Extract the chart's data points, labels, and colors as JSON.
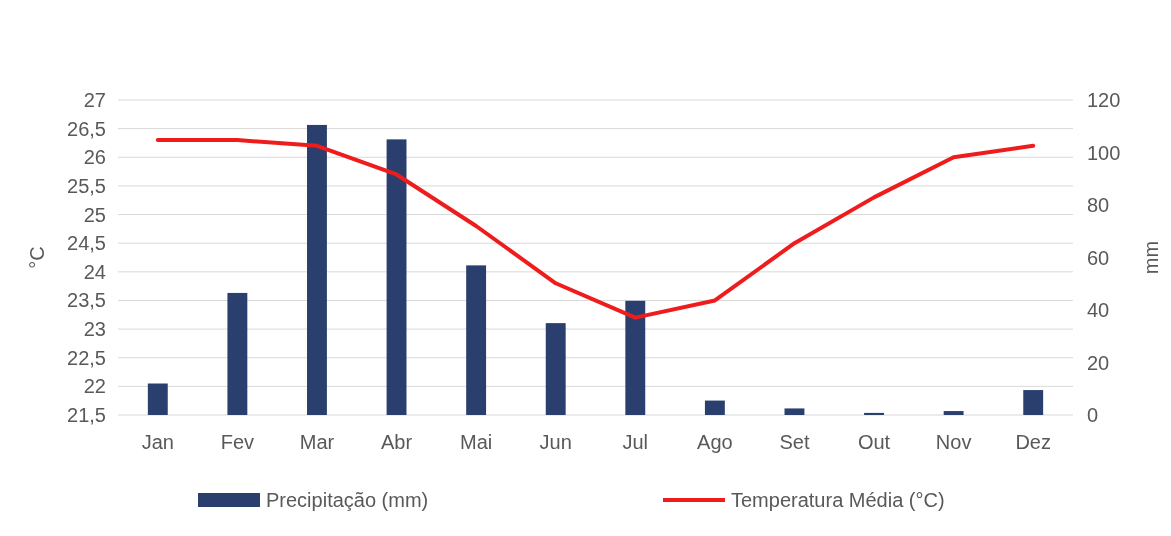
{
  "chart_data": {
    "type": "bar",
    "categories": [
      "Jan",
      "Fev",
      "Mar",
      "Abr",
      "Mai",
      "Jun",
      "Jul",
      "Ago",
      "Set",
      "Out",
      "Nov",
      "Dez"
    ],
    "series": [
      {
        "name": "Precipitação (mm)",
        "axis": "y2",
        "color": "#2a3f6d",
        "values": [
          12,
          46.5,
          110.5,
          105,
          57,
          35,
          43.5,
          5.5,
          2.5,
          0.8,
          1.5,
          9.5
        ]
      },
      {
        "name": "Temperatura Média (°C)",
        "type": "line",
        "color": "#ee1c1c",
        "values": [
          26.3,
          26.3,
          26.2,
          25.7,
          24.8,
          23.8,
          23.2,
          23.5,
          24.5,
          25.3,
          26,
          26.2
        ]
      }
    ],
    "ylabel": "°C",
    "y2label": "mm",
    "ylim": [
      21.5,
      27
    ],
    "yticks": [
      {
        "value": 21.5,
        "label": "21,5"
      },
      22,
      {
        "value": 22.5,
        "label": "22,5"
      },
      23,
      {
        "value": 23.5,
        "label": "23,5"
      },
      24,
      {
        "value": 24.5,
        "label": "24,5"
      },
      25,
      {
        "value": 25.5,
        "label": "25,5"
      },
      26,
      {
        "value": 26.5,
        "label": "26,5"
      },
      27
    ],
    "y2lim": [
      0,
      120
    ],
    "y2ticks": [
      0,
      20,
      40,
      60,
      80,
      100,
      120
    ],
    "grid": "y",
    "legend": "bottom",
    "marker": "none",
    "line_style": "solid"
  }
}
